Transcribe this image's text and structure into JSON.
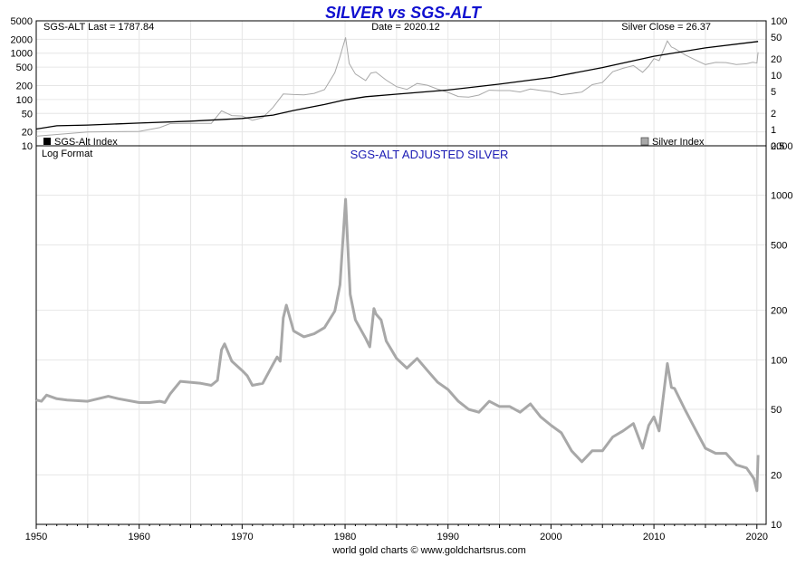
{
  "chart_data": [
    {
      "type": "line",
      "title": "SILVER vs SGS-ALT",
      "info_left": "SGS-ALT Last = 1787.84",
      "info_center": "Date = 2020.12",
      "info_right": "Silver Close = 26.37",
      "left_axis_scale": "log",
      "left_axis_ticks": [
        "10",
        "20",
        "50",
        "100",
        "200",
        "500",
        "1000",
        "2000",
        "5000"
      ],
      "right_axis_scale": "log",
      "right_axis_ticks": [
        "0.5",
        "1",
        "2",
        "5",
        "10",
        "20",
        "50",
        "100"
      ],
      "ylim_left": [
        10,
        5000
      ],
      "ylim_right": [
        0.5,
        100
      ],
      "xlim": [
        1950,
        2020.9
      ],
      "grid": true,
      "series": [
        {
          "name": "SGS-Alt Index",
          "axis": "left",
          "color": "#000000",
          "legend_position": "bottom-left",
          "x": [
            1950,
            1952,
            1955,
            1960,
            1965,
            1970,
            1973,
            1975,
            1978,
            1980,
            1982,
            1985,
            1990,
            1995,
            2000,
            2005,
            2010,
            2015,
            2020.12
          ],
          "y": [
            23,
            27,
            28,
            31,
            34,
            39,
            46,
            58,
            78,
            98,
            115,
            130,
            160,
            215,
            300,
            490,
            860,
            1300,
            1787.84
          ]
        },
        {
          "name": "Silver Index",
          "axis": "right",
          "color": "#a8a8a8",
          "legend_position": "bottom-right",
          "x": [
            1950,
            1955,
            1960,
            1962,
            1963,
            1965,
            1967,
            1968,
            1969,
            1970,
            1971,
            1972,
            1973,
            1974,
            1975,
            1976,
            1977,
            1978,
            1979,
            1979.5,
            1980.05,
            1980.4,
            1981,
            1982,
            1982.5,
            1983,
            1984,
            1985,
            1986,
            1987,
            1988,
            1989,
            1990,
            1991,
            1992,
            1993,
            1994,
            1995,
            1996,
            1997,
            1998,
            1999,
            2000,
            2001,
            2002,
            2003,
            2004,
            2005,
            2006,
            2007,
            2008,
            2008.9,
            2009.5,
            2010,
            2010.5,
            2011.3,
            2011.7,
            2012,
            2013,
            2014,
            2015,
            2016,
            2017,
            2018,
            2019,
            2019.6,
            2020,
            2020.12
          ],
          "y": [
            0.75,
            0.9,
            0.92,
            1.08,
            1.28,
            1.29,
            1.29,
            2.2,
            1.8,
            1.77,
            1.47,
            1.65,
            2.55,
            4.5,
            4.4,
            4.35,
            4.62,
            5.4,
            11.1,
            21.8,
            49.5,
            16.4,
            10.5,
            7.95,
            10.9,
            11.4,
            8.1,
            6.14,
            5.47,
            7.01,
            6.53,
            5.5,
            4.82,
            4.04,
            3.94,
            4.3,
            5.29,
            5.2,
            5.2,
            4.9,
            5.55,
            5.22,
            4.95,
            4.37,
            4.6,
            4.88,
            6.67,
            7.32,
            11.55,
            13.38,
            14.99,
            11.3,
            14.7,
            20.19,
            18.5,
            42.7,
            33.0,
            31.15,
            23.79,
            19.08,
            15.68,
            17.14,
            17.04,
            15.71,
            16.21,
            17.2,
            16.7,
            26.37
          ]
        }
      ]
    },
    {
      "type": "line",
      "title": "SGS-ALT ADJUSTED  SILVER",
      "format_label": "Log Format",
      "y_scale": "log",
      "y_ticks": [
        "10",
        "20",
        "50",
        "100",
        "200",
        "500",
        "1000",
        "2000"
      ],
      "ylim": [
        10,
        2000
      ],
      "x_ticks": [
        "1950",
        "1960",
        "1970",
        "1980",
        "1990",
        "2000",
        "2010",
        "2020"
      ],
      "xlim": [
        1950,
        2020.9
      ],
      "grid": true,
      "series": [
        {
          "name": "",
          "color": "#a8a8a8",
          "x": [
            1950,
            1950.5,
            1951,
            1952,
            1953,
            1955,
            1957,
            1958,
            1960,
            1961,
            1962,
            1962.5,
            1963,
            1964,
            1966,
            1967,
            1967.6,
            1968,
            1968.3,
            1969,
            1970,
            1970.5,
            1971,
            1972,
            1973,
            1973.4,
            1973.7,
            1974,
            1974.3,
            1975,
            1976,
            1977,
            1978,
            1979,
            1979.5,
            1980.05,
            1980.25,
            1980.5,
            1981,
            1982,
            1982.4,
            1982.8,
            1983,
            1983.5,
            1984,
            1985,
            1986,
            1987,
            1988,
            1989,
            1990,
            1991,
            1992,
            1993,
            1994,
            1995,
            1996,
            1997,
            1998,
            1999,
            2000,
            2001,
            2002,
            2003,
            2004,
            2005,
            2006,
            2007,
            2008,
            2008.9,
            2009.5,
            2010,
            2010.5,
            2011.3,
            2011.7,
            2012,
            2013,
            2014,
            2015,
            2016,
            2017,
            2018,
            2019,
            2019.7,
            2020,
            2020.12
          ],
          "y": [
            57,
            56,
            61,
            58,
            57,
            56,
            60,
            58,
            55,
            55,
            56,
            55,
            62,
            74,
            72,
            70,
            75,
            115,
            125,
            98,
            86,
            80,
            70,
            72,
            94,
            104,
            98,
            180,
            215,
            150,
            138,
            144,
            157,
            198,
            285,
            945,
            510,
            250,
            175,
            135,
            120,
            205,
            190,
            175,
            130,
            102,
            89,
            102,
            86,
            73,
            66,
            56,
            50,
            48,
            56,
            52,
            52,
            48,
            54,
            45,
            40,
            36,
            28,
            24,
            28,
            28,
            34,
            37,
            41,
            29,
            40,
            45,
            37,
            95,
            68,
            67,
            50,
            38,
            29,
            27,
            27,
            23,
            22,
            19,
            16,
            26.37
          ]
        }
      ]
    }
  ],
  "footer": "world gold charts © www.goldchartsrus.com"
}
